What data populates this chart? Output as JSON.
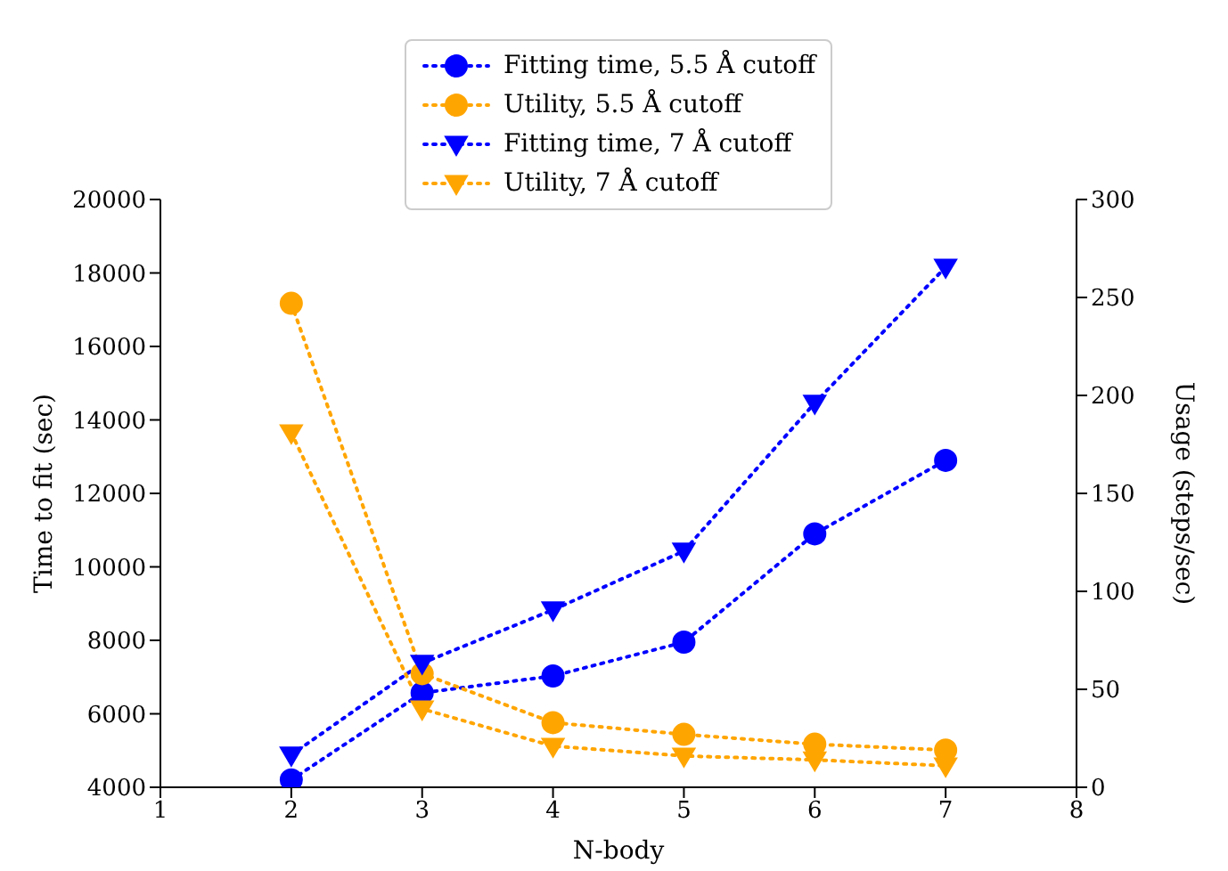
{
  "chart_data": {
    "type": "line",
    "xlabel": "N-body",
    "ylabel": "Time to fit (sec)",
    "y2label": "Usage (steps/sec)",
    "x": [
      2,
      3,
      4,
      5,
      6,
      7
    ],
    "xlim": [
      1,
      8
    ],
    "xticks": [
      1,
      2,
      3,
      4,
      5,
      6,
      7,
      8
    ],
    "ylim": [
      4000,
      20000
    ],
    "yticks": [
      4000,
      6000,
      8000,
      10000,
      12000,
      14000,
      16000,
      18000,
      20000
    ],
    "y2lim": [
      0,
      300
    ],
    "y2ticks": [
      0,
      50,
      100,
      150,
      200,
      250,
      300
    ],
    "grid": false,
    "legend": "top",
    "line_style": "dotted",
    "series": [
      {
        "name": "Fitting time, 5.5 Å cutoff",
        "color": "#0000ff",
        "marker": "circle",
        "values": [
          4200,
          6570,
          7030,
          7950,
          10900,
          12900
        ]
      },
      {
        "name": "Utility, 5.5 Å cutoff",
        "color": "#ffa500",
        "marker": "circle",
        "axis": "y2",
        "values": [
          247,
          58,
          33,
          27,
          22,
          19
        ]
      },
      {
        "name": "Fitting time, 7 Å cutoff",
        "color": "#0000ff",
        "marker": "triangle",
        "values": [
          4880,
          7380,
          8830,
          10430,
          14460,
          18160
        ]
      },
      {
        "name": "Utility, 7 Å cutoff",
        "color": "#ffa500",
        "marker": "triangle",
        "axis": "y2",
        "values": [
          181,
          40,
          21,
          16,
          14,
          11
        ]
      }
    ]
  }
}
